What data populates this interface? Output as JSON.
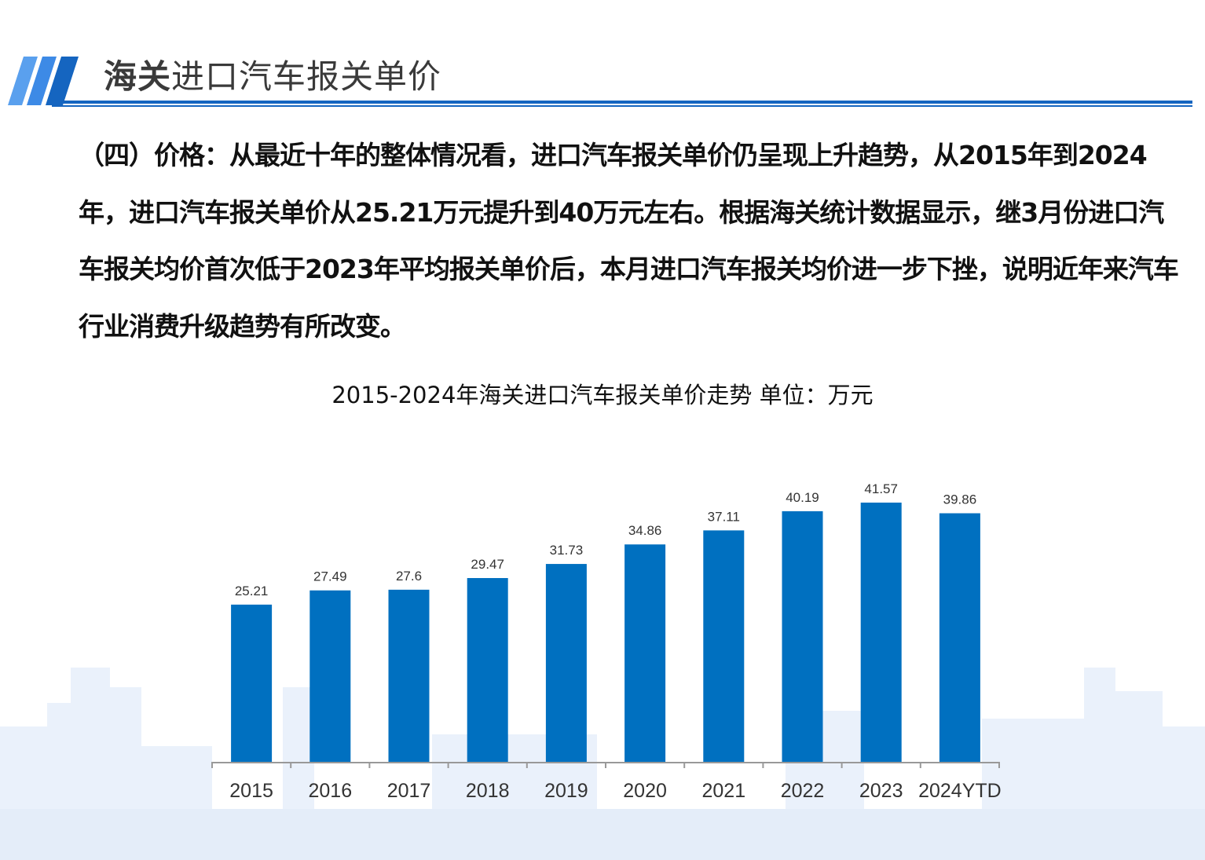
{
  "header": {
    "title_bold": "海关",
    "title_rest": "进口汽车报关单价"
  },
  "paragraph": "（四）价格：从最近十年的整体情况看，进口汽车报关单价仍呈现上升趋势，从2015年到2024年，进口汽车报关单价从25.21万元提升到40万元左右。根据海关统计数据显示，继3月份进口汽车报关均价首次低于2023年平均报关单价后，本月进口汽车报关均价进一步下挫，说明近年来汽车行业消费升级趋势有所改变。",
  "colors": {
    "accent": "#1565c0",
    "bar": "#0070c0",
    "background_city": "#e8f0fb"
  },
  "chart_data": {
    "type": "bar",
    "title": "2015-2024年海关进口汽车报关单价走势  单位：万元",
    "categories": [
      "2015",
      "2016",
      "2017",
      "2018",
      "2019",
      "2020",
      "2021",
      "2022",
      "2023",
      "2024YTD"
    ],
    "values": [
      25.21,
      27.49,
      27.6,
      29.47,
      31.73,
      34.86,
      37.11,
      40.19,
      41.57,
      39.86
    ],
    "data_labels": [
      "25.21",
      "27.49",
      "27.6",
      "29.47",
      "31.73",
      "34.86",
      "37.11",
      "40.19",
      "41.57",
      "39.86"
    ],
    "ylim": [
      0,
      122
    ],
    "grid": false,
    "y_axis_visible": false
  }
}
